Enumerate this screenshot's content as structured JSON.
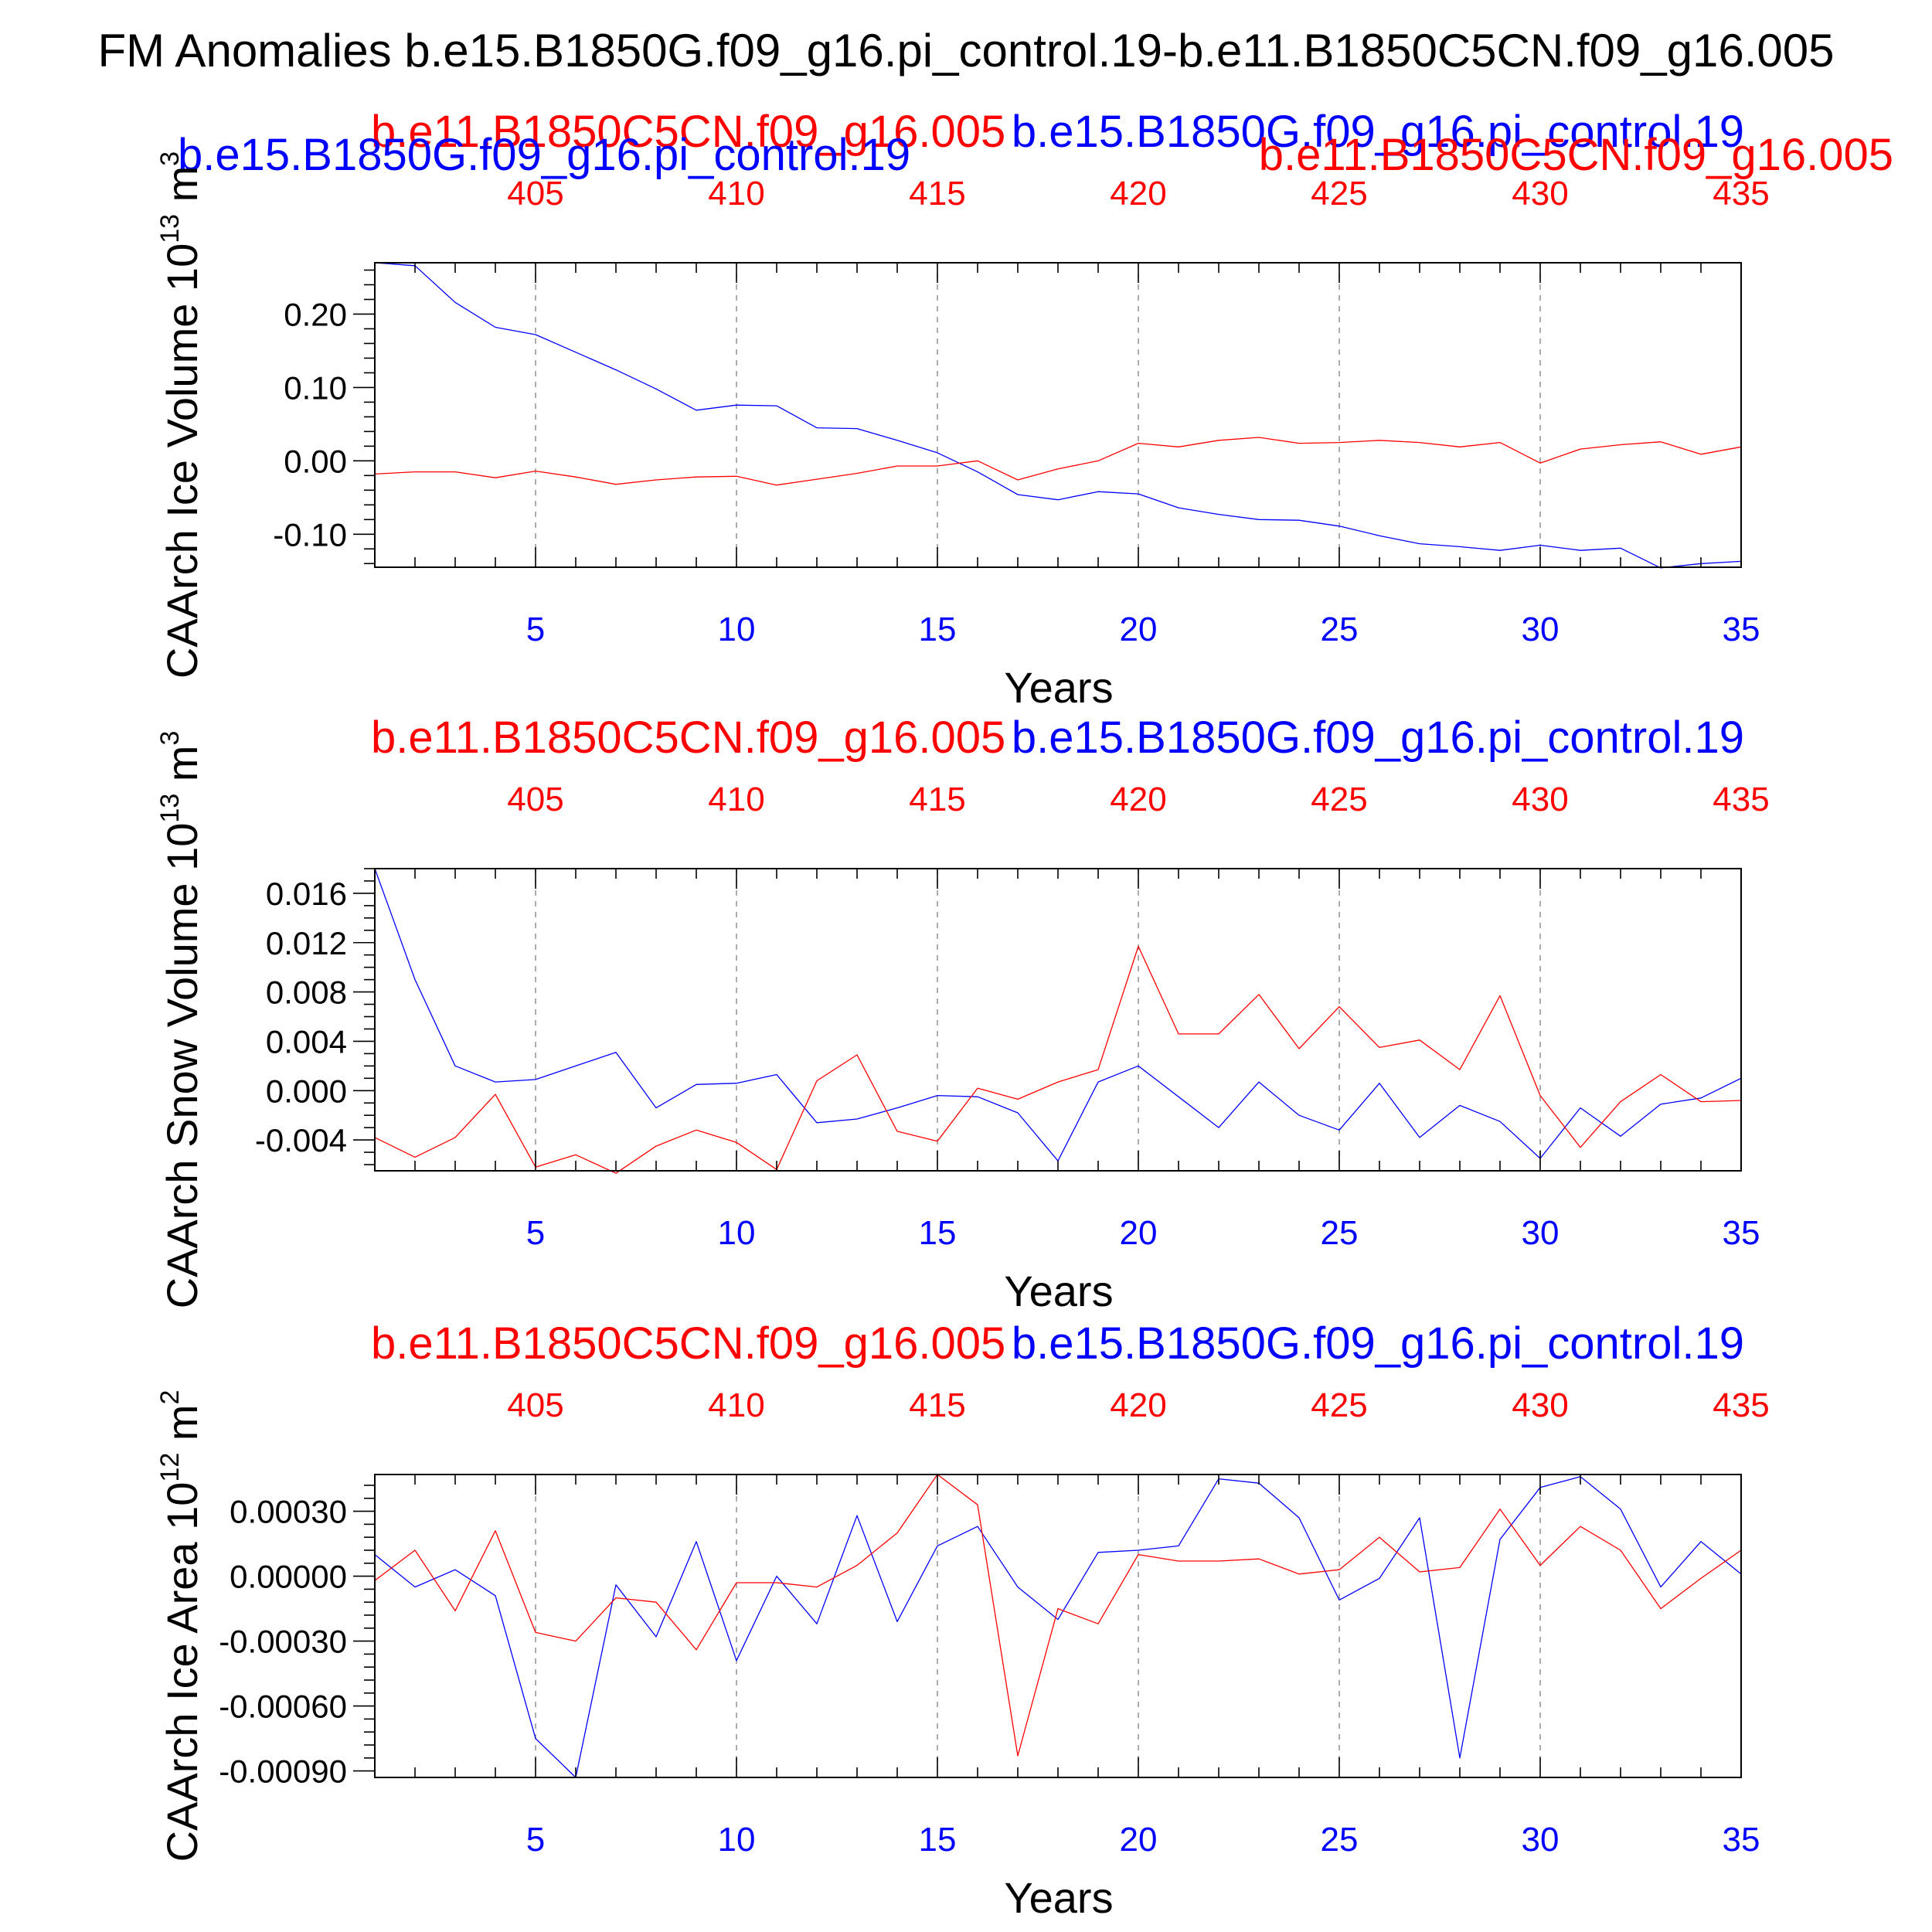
{
  "page": {
    "title": "FM Anomalies b.e15.B1850G.f09_g16.pi_control.19-b.e11.B1850C5CN.f09_g16.005"
  },
  "colors": {
    "series_a": "#0000ff",
    "series_b": "#ff0000",
    "axis": "#000000",
    "grid": "#888888"
  },
  "chart_data": [
    {
      "type": "line",
      "ylabel_main": "CAArch Ice Volume 10",
      "ylabel_exp": "13",
      "ylabel_unit": " m",
      "ylabel_unit_exp": "3",
      "xlabel": "Years",
      "xlim": [
        1,
        35
      ],
      "ylim": [
        -0.145,
        0.27
      ],
      "yticks": [
        -0.1,
        0.0,
        0.1,
        0.2
      ],
      "ytick_labels": [
        "-0.10",
        "0.00",
        "0.10",
        "0.20"
      ],
      "yminor_step": 0.02,
      "xticks_bottom": [
        5,
        10,
        15,
        20,
        25,
        30,
        35
      ],
      "xtick_labels_bottom": [
        "5",
        "10",
        "15",
        "20",
        "25",
        "30",
        "35"
      ],
      "xtick_labels_top": [
        "405",
        "410",
        "415",
        "420",
        "425",
        "430",
        "435"
      ],
      "x": [
        1,
        2,
        3,
        4,
        5,
        6,
        7,
        8,
        9,
        10,
        11,
        12,
        13,
        14,
        15,
        16,
        17,
        18,
        19,
        20,
        21,
        22,
        23,
        24,
        25,
        26,
        27,
        28,
        29,
        30,
        31,
        32,
        33,
        34,
        35
      ],
      "series": [
        {
          "name": "b.e15.B1850G.f09_g16.pi_control.19",
          "color": "#0000ff",
          "label_position": "top-left",
          "values": [
            0.27,
            0.266,
            0.216,
            0.182,
            0.172,
            0.148,
            0.124,
            0.098,
            0.069,
            0.076,
            0.075,
            0.045,
            0.044,
            0.028,
            0.011,
            -0.015,
            -0.046,
            -0.053,
            -0.042,
            -0.045,
            -0.064,
            -0.073,
            -0.08,
            -0.081,
            -0.089,
            -0.102,
            -0.113,
            -0.117,
            -0.122,
            -0.115,
            -0.122,
            -0.119,
            -0.146,
            -0.14,
            -0.137
          ]
        },
        {
          "name": "b.e11.B1850C5CN.f09_g16.005",
          "color": "#ff0000",
          "label_position": "top-right",
          "values": [
            -0.018,
            -0.015,
            -0.015,
            -0.023,
            -0.014,
            -0.022,
            -0.032,
            -0.026,
            -0.022,
            -0.021,
            -0.033,
            -0.025,
            -0.017,
            -0.007,
            -0.007,
            0.0,
            -0.026,
            -0.011,
            0.0,
            0.024,
            0.019,
            0.028,
            0.032,
            0.024,
            0.025,
            0.028,
            0.025,
            0.019,
            0.025,
            -0.003,
            0.016,
            0.022,
            0.026,
            0.009,
            0.019
          ]
        }
      ],
      "series_labels_top": [
        {
          "text": "b.e11.B1850C5CN.f09_g16.005",
          "color": "#ff0000"
        },
        {
          "text": "b.e15.B1850G.f09_g16.pi_control.19",
          "color": "#0000ff"
        }
      ]
    },
    {
      "type": "line",
      "ylabel_main": "CAArch Snow Volume 10",
      "ylabel_exp": "13",
      "ylabel_unit": " m",
      "ylabel_unit_exp": "3",
      "xlabel": "Years",
      "xlim": [
        1,
        35
      ],
      "ylim": [
        -0.0065,
        0.018
      ],
      "yticks": [
        -0.004,
        0.0,
        0.004,
        0.008,
        0.012,
        0.016
      ],
      "ytick_labels": [
        "-0.004",
        "0.000",
        "0.004",
        "0.008",
        "0.012",
        "0.016"
      ],
      "yminor_step": 0.001,
      "xticks_bottom": [
        5,
        10,
        15,
        20,
        25,
        30,
        35
      ],
      "xtick_labels_bottom": [
        "5",
        "10",
        "15",
        "20",
        "25",
        "30",
        "35"
      ],
      "xtick_labels_top": [
        "405",
        "410",
        "415",
        "420",
        "425",
        "430",
        "435"
      ],
      "x": [
        1,
        2,
        3,
        4,
        5,
        6,
        7,
        8,
        9,
        10,
        11,
        12,
        13,
        14,
        15,
        16,
        17,
        18,
        19,
        20,
        21,
        22,
        23,
        24,
        25,
        26,
        27,
        28,
        29,
        30,
        31,
        32,
        33,
        34,
        35
      ],
      "series": [
        {
          "name": "b.e15.B1850G.f09_g16.pi_control.19",
          "color": "#0000ff",
          "values": [
            0.018,
            0.009,
            0.002,
            0.0007,
            0.0009,
            0.002,
            0.0031,
            -0.0014,
            0.0005,
            0.0006,
            0.0013,
            -0.0026,
            -0.0023,
            -0.0014,
            -0.0004,
            -0.0005,
            -0.0018,
            -0.0057,
            0.0007,
            0.002,
            -0.0005,
            -0.003,
            0.0007,
            -0.002,
            -0.0032,
            0.0006,
            -0.0038,
            -0.0012,
            -0.0025,
            -0.0055,
            -0.0014,
            -0.0037,
            -0.0011,
            -0.0006,
            0.001
          ]
        },
        {
          "name": "b.e11.B1850C5CN.f09_g16.005",
          "color": "#ff0000",
          "values": [
            -0.0038,
            -0.0054,
            -0.0038,
            -0.0003,
            -0.0062,
            -0.0052,
            -0.0067,
            -0.0045,
            -0.0032,
            -0.0042,
            -0.0064,
            0.0008,
            0.0029,
            -0.0033,
            -0.0041,
            0.0002,
            -0.0007,
            0.0007,
            0.0017,
            0.0117,
            0.0046,
            0.0046,
            0.0078,
            0.0034,
            0.0068,
            0.0035,
            0.0041,
            0.0017,
            0.0077,
            -0.0004,
            -0.0046,
            -0.0009,
            0.0013,
            -0.0009,
            -0.0008
          ]
        }
      ],
      "series_labels_top": [
        {
          "text": "b.e11.B1850C5CN.f09_g16.005",
          "color": "#ff0000"
        },
        {
          "text": "b.e15.B1850G.f09_g16.pi_control.19",
          "color": "#0000ff"
        }
      ]
    },
    {
      "type": "line",
      "ylabel_main": "CAArch Ice Area 10",
      "ylabel_exp": "12",
      "ylabel_unit": " m",
      "ylabel_unit_exp": "2",
      "xlabel": "Years",
      "xlim": [
        1,
        35
      ],
      "ylim": [
        -0.00093,
        0.00047
      ],
      "yticks": [
        -0.0009,
        -0.0006,
        -0.0003,
        0.0,
        0.0003
      ],
      "ytick_labels": [
        "-0.00090",
        "-0.00060",
        "-0.00030",
        "0.00000",
        "0.00030"
      ],
      "yminor_step": 6e-05,
      "xticks_bottom": [
        5,
        10,
        15,
        20,
        25,
        30,
        35
      ],
      "xtick_labels_bottom": [
        "5",
        "10",
        "15",
        "20",
        "25",
        "30",
        "35"
      ],
      "xtick_labels_top": [
        "405",
        "410",
        "415",
        "420",
        "425",
        "430",
        "435"
      ],
      "x": [
        1,
        2,
        3,
        4,
        5,
        6,
        7,
        8,
        9,
        10,
        11,
        12,
        13,
        14,
        15,
        16,
        17,
        18,
        19,
        20,
        21,
        22,
        23,
        24,
        25,
        26,
        27,
        28,
        29,
        30,
        31,
        32,
        33,
        34,
        35
      ],
      "series": [
        {
          "name": "b.e15.B1850G.f09_g16.pi_control.19",
          "color": "#0000ff",
          "values": [
            0.0001,
            -5e-05,
            3e-05,
            -9e-05,
            -0.00075,
            -0.00093,
            -4e-05,
            -0.00028,
            0.00016,
            -0.00039,
            0.0,
            -0.00022,
            0.00028,
            -0.00021,
            0.00014,
            0.00023,
            -5e-05,
            -0.0002,
            0.00011,
            0.00012,
            0.00014,
            0.00045,
            0.00043,
            0.00027,
            -0.00011,
            -1e-05,
            0.00027,
            -0.00084,
            0.00017,
            0.00041,
            0.00046,
            0.00031,
            -5e-05,
            0.00016,
            1e-05
          ]
        },
        {
          "name": "b.e11.B1850C5CN.f09_g16.005",
          "color": "#ff0000",
          "values": [
            -2e-05,
            0.00012,
            -0.00016,
            0.00021,
            -0.00026,
            -0.0003,
            -0.0001,
            -0.00012,
            -0.00034,
            -3e-05,
            -3e-05,
            -5e-05,
            5e-05,
            0.0002,
            0.00047,
            0.00033,
            -0.00083,
            -0.00015,
            -0.00022,
            0.0001,
            7e-05,
            7e-05,
            8e-05,
            1e-05,
            3e-05,
            0.00018,
            2e-05,
            4e-05,
            0.00031,
            5e-05,
            0.00023,
            0.00012,
            -0.00015,
            -1e-05,
            0.00012
          ]
        }
      ],
      "series_labels_top": [
        {
          "text": "b.e11.B1850C5CN.f09_g16.005",
          "color": "#ff0000"
        },
        {
          "text": "b.e15.B1850G.f09_g16.pi_control.19",
          "color": "#0000ff"
        }
      ]
    }
  ]
}
